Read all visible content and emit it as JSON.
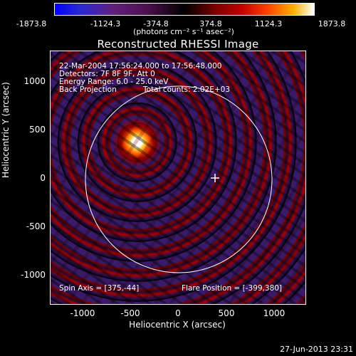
{
  "colorbar": {
    "ticks": [
      "-1873.8",
      "-1124.3",
      "-374.8",
      "374.8",
      "1124.3",
      "1873.8"
    ],
    "unit_label": "(photons cm⁻² s⁻¹ asec⁻²)"
  },
  "title": "Reconstructed RHESSI Image",
  "info": {
    "line1": "22-Mar-2004 17:56:24.000 to 17:56:48.000",
    "line2": "Detectors: 7F 8F 9F, Att 0",
    "line3": "Energy Range: 6.0 - 25.0 keV",
    "line4a": "Back Projection",
    "line4b": "Total counts: 2.02E+03",
    "spin_axis": "Spin Axis = [375,-44]",
    "flare_position": "Flare Position = [-399,380]"
  },
  "axes": {
    "ylabel": "Heliocentric Y (arcsec)",
    "xlabel": "Heliocentric X (arcsec)",
    "yticks": [
      "1000",
      "500",
      "0",
      "-500",
      "-1000"
    ],
    "xticks": [
      "-1000",
      "-500",
      "0",
      "500",
      "1000"
    ]
  },
  "timestamp": "27-Jun-2013 23:31"
}
